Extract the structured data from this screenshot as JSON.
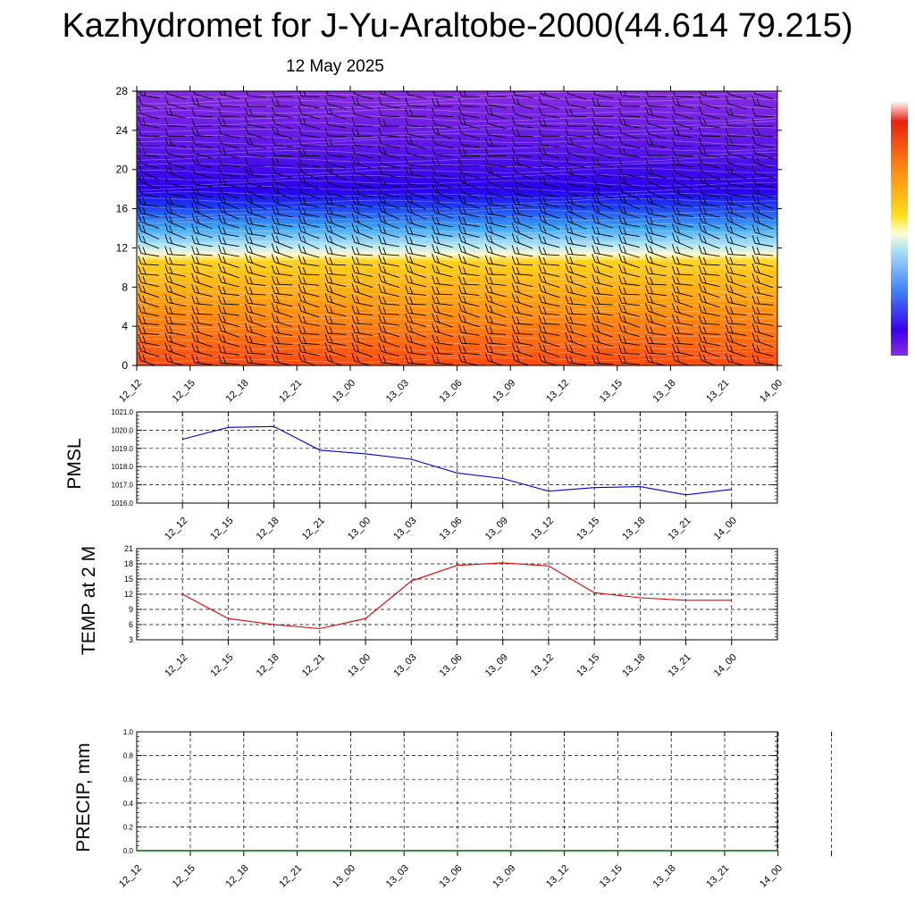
{
  "title": "Kazhydromet for J-Yu-Araltobe-2000(44.614 79.215)",
  "date": "12 May 2025",
  "time_labels": [
    "12_12",
    "12_15",
    "12_18",
    "12_21",
    "13_00",
    "13_03",
    "13_06",
    "13_09",
    "13_12",
    "13_15",
    "13_18",
    "13_21",
    "14_00"
  ],
  "colors": {
    "pmsl_line": "#0000cc",
    "temp_line": "#dd0000",
    "precip_line": "#006400",
    "barb": "#000000",
    "isoline": "#ffffff"
  },
  "chart_data": [
    {
      "type": "heatmap",
      "id": "temperature-profile",
      "ylim": [
        0,
        28
      ],
      "y_ticks": [
        0,
        4,
        8,
        12,
        16,
        20,
        24,
        28
      ],
      "x": [
        "12_12",
        "12_15",
        "12_18",
        "12_21",
        "13_00",
        "13_03",
        "13_06",
        "13_09",
        "13_12",
        "13_15",
        "13_18",
        "13_21",
        "14_00"
      ],
      "overlay": "wind barbs",
      "grid": false
    },
    {
      "type": "line",
      "id": "pmsl",
      "ylabel": "PMSL",
      "ylim": [
        1016.0,
        1021.0
      ],
      "y_ticks": [
        "1016.0",
        "1017.0",
        "1018.0",
        "1019.0",
        "1020.0",
        "1021.0"
      ],
      "x": [
        "12_12",
        "12_15",
        "12_18",
        "12_21",
        "13_00",
        "13_03",
        "13_06",
        "13_09",
        "13_12",
        "13_15",
        "13_18",
        "13_21",
        "14_00"
      ],
      "series": [
        {
          "values": [
            1019.5,
            1020.15,
            1020.2,
            1018.9,
            1018.7,
            1018.4,
            1017.65,
            1017.35,
            1016.65,
            1016.85,
            1016.9,
            1016.45,
            1016.75
          ]
        }
      ],
      "grid": true
    },
    {
      "type": "line",
      "id": "temp2m",
      "ylabel": "TEMP at 2 M",
      "ylim": [
        3,
        21
      ],
      "y_ticks": [
        "3",
        "6",
        "9",
        "12",
        "15",
        "18",
        "21"
      ],
      "x": [
        "12_12",
        "12_15",
        "12_18",
        "12_21",
        "13_00",
        "13_03",
        "13_06",
        "13_09",
        "13_12",
        "13_15",
        "13_18",
        "13_21",
        "14_00"
      ],
      "series": [
        {
          "values": [
            12.0,
            7.2,
            6.0,
            5.2,
            7.2,
            14.6,
            17.7,
            18.2,
            17.6,
            12.3,
            11.3,
            10.8,
            10.8
          ]
        }
      ],
      "grid": true
    },
    {
      "type": "line",
      "id": "precip",
      "ylabel": "PRECIP, mm",
      "ylim": [
        0.0,
        1.0
      ],
      "y_ticks": [
        "0.0",
        "0.2",
        "0.4",
        "0.6",
        "0.8",
        "1.0"
      ],
      "x": [
        "12_12",
        "12_15",
        "12_18",
        "12_21",
        "13_00",
        "13_03",
        "13_06",
        "13_09",
        "13_12",
        "13_15",
        "13_18",
        "13_21",
        "14_00"
      ],
      "series": [
        {
          "values": [
            0,
            0,
            0,
            0,
            0,
            0,
            0,
            0,
            0,
            0,
            0,
            0,
            0
          ]
        }
      ],
      "grid": true
    }
  ]
}
